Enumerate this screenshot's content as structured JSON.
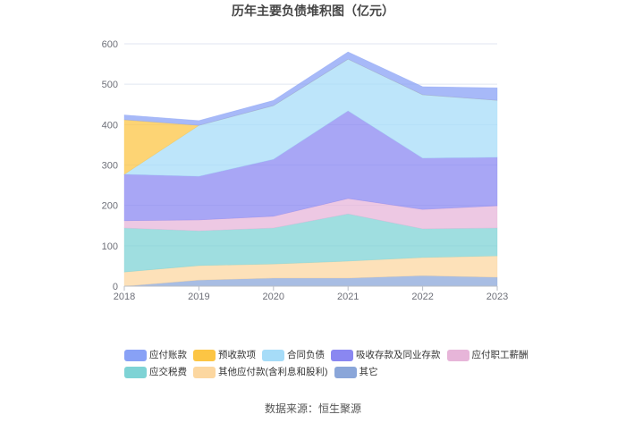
{
  "chart_data": {
    "type": "area",
    "stacked": true,
    "title": "历年主要负债堆积图（亿元）",
    "x": [
      "2018",
      "2019",
      "2020",
      "2021",
      "2022",
      "2023"
    ],
    "ylim": [
      0,
      600
    ],
    "yticks": [
      0,
      100,
      200,
      300,
      400,
      500,
      600
    ],
    "grid": true,
    "legend_position": "bottom",
    "series": [
      {
        "name": "应付账款",
        "values": [
          12,
          12,
          13,
          18,
          20,
          31
        ],
        "color": "#88a1f6"
      },
      {
        "name": "预收款项",
        "values": [
          135,
          0,
          0,
          0,
          0,
          0
        ],
        "color": "#fcc544"
      },
      {
        "name": "合同负债",
        "values": [
          0,
          126,
          133,
          128,
          157,
          141
        ],
        "color": "#a6dcf8"
      },
      {
        "name": "吸收存款及同业存款",
        "values": [
          115,
          108,
          141,
          217,
          127,
          120
        ],
        "color": "#8a87f1"
      },
      {
        "name": "应付职工薪酬",
        "values": [
          18,
          27,
          29,
          38,
          48,
          55
        ],
        "color": "#e7b5d9"
      },
      {
        "name": "应交税费",
        "values": [
          109,
          86,
          89,
          117,
          71,
          69
        ],
        "color": "#7ed3d5"
      },
      {
        "name": "其他应付款(含利息和股利)",
        "values": [
          35,
          36,
          35,
          42,
          45,
          53
        ],
        "color": "#fcd7a0"
      },
      {
        "name": "其它",
        "values": [
          0,
          15,
          20,
          20,
          26,
          22
        ],
        "color": "#8aa6d9"
      }
    ]
  },
  "source": "数据来源：恒生聚源"
}
